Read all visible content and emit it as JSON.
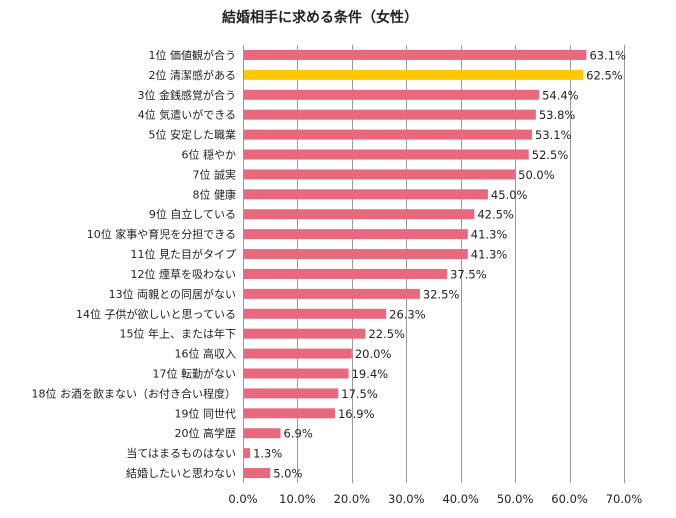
{
  "chart_data": {
    "type": "bar",
    "orientation": "horizontal",
    "title": "結婚相手に求める条件（女性）",
    "categories": [
      "1位 価値観が合う",
      "2位 清潔感がある",
      "3位 金銭感覚が合う",
      "4位 気遣いができる",
      "5位 安定した職業",
      "6位 穏やか",
      "7位 誠実",
      "8位 健康",
      "9位 自立している",
      "10位 家事や育児を分担できる",
      "11位 見た目がタイプ",
      "12位 煙草を吸わない",
      "13位 両親との同居がない",
      "14位 子供が欲しいと思っている",
      "15位 年上、または年下",
      "16位 高収入",
      "17位 転勤がない",
      "18位 お酒を飲まない（お付き合い程度）",
      "19位 同世代",
      "20位 高学歴",
      "当てはまるものはない",
      "結婚したいと思わない"
    ],
    "values": [
      63.1,
      62.5,
      54.4,
      53.8,
      53.1,
      52.5,
      50.0,
      45.0,
      42.5,
      41.3,
      41.3,
      37.5,
      32.5,
      26.3,
      22.5,
      20.0,
      19.4,
      17.5,
      16.9,
      6.9,
      1.3,
      5.0
    ],
    "value_labels": [
      "63.1%",
      "62.5%",
      "54.4%",
      "53.8%",
      "53.1%",
      "52.5%",
      "50.0%",
      "45.0%",
      "42.5%",
      "41.3%",
      "41.3%",
      "37.5%",
      "32.5%",
      "26.3%",
      "22.5%",
      "20.0%",
      "19.4%",
      "17.5%",
      "16.9%",
      "6.9%",
      "1.3%",
      "5.0%"
    ],
    "highlight_index": 1,
    "xlim": [
      0,
      70
    ],
    "x_ticks": [
      0,
      10,
      20,
      30,
      40,
      50,
      60,
      70
    ],
    "x_tick_labels": [
      "0.0%",
      "10.0%",
      "20.0%",
      "30.0%",
      "40.0%",
      "50.0%",
      "60.0%",
      "70.0%"
    ],
    "grid": "vertical",
    "legend": "none",
    "colors": {
      "bar": "#e8697e",
      "highlight": "#ffc800",
      "grid": "#9a9a9a",
      "text": "#222222"
    }
  }
}
